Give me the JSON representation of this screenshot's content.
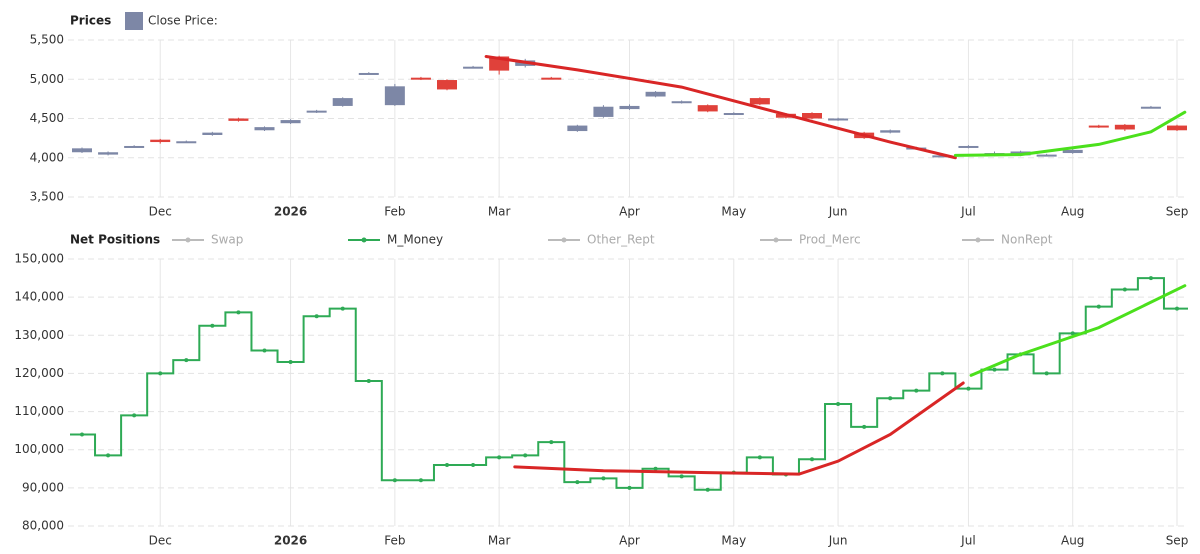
{
  "chart_data": [
    {
      "type": "candlestick",
      "title": "Prices",
      "legend": "Close Price:",
      "categories": [
        null,
        null,
        null,
        "Dec",
        null,
        null,
        null,
        null,
        "2026",
        null,
        null,
        null,
        "Feb",
        null,
        null,
        null,
        "Mar",
        null,
        null,
        null,
        null,
        "Apr",
        null,
        null,
        null,
        "May",
        null,
        null,
        null,
        "Jun",
        null,
        null,
        null,
        null,
        "Jul",
        null,
        null,
        null,
        "Aug",
        null,
        null,
        null,
        "Sep"
      ],
      "open": [
        4070,
        4040,
        4140,
        4230,
        4200,
        4290,
        4500,
        4350,
        4440,
        4580,
        4660,
        5070,
        4670,
        5020,
        4990,
        5150,
        5290,
        5170,
        5020,
        4340,
        4520,
        4620,
        4780,
        4700,
        4670,
        4560,
        4760,
        4560,
        4570,
        4480,
        4320,
        4320,
        4120,
        4020,
        4130,
        4030,
        4030,
        4030,
        4060,
        4410,
        4420,
        4640,
        4410
      ],
      "high": [
        4130,
        4080,
        4160,
        4240,
        4220,
        4330,
        4510,
        4400,
        4490,
        4610,
        4770,
        5090,
        4940,
        5030,
        5000,
        5170,
        5300,
        5260,
        5030,
        4420,
        4670,
        4680,
        4850,
        4730,
        4680,
        4580,
        4770,
        4570,
        4580,
        4510,
        4330,
        4360,
        4140,
        4040,
        4160,
        4080,
        4090,
        4050,
        4120,
        4420,
        4430,
        4660,
        4420
      ],
      "low": [
        4060,
        4030,
        4140,
        4180,
        4190,
        4280,
        4460,
        4340,
        4430,
        4570,
        4650,
        5060,
        4660,
        4990,
        4860,
        5140,
        5060,
        5150,
        5000,
        4330,
        4510,
        4610,
        4770,
        4690,
        4580,
        4550,
        4670,
        4500,
        4490,
        4470,
        4240,
        4310,
        4110,
        4010,
        4120,
        4020,
        4020,
        4020,
        4050,
        4380,
        4340,
        4630,
        4340
      ],
      "close": [
        4120,
        4070,
        4150,
        4200,
        4210,
        4320,
        4470,
        4390,
        4480,
        4600,
        4760,
        5080,
        4910,
        5000,
        4870,
        5160,
        5110,
        5240,
        5010,
        4410,
        4650,
        4660,
        4840,
        4720,
        4590,
        4570,
        4680,
        4510,
        4500,
        4500,
        4250,
        4350,
        4130,
        4030,
        4150,
        4060,
        4080,
        4040,
        4100,
        4390,
        4360,
        4650,
        4350
      ],
      "up_color": "#7d87a6",
      "down_color": "#e0413a",
      "ylim": [
        3500,
        5500
      ],
      "yticks": [
        {
          "value": 3500,
          "label": "3,500"
        },
        {
          "value": 4000,
          "label": "4,000"
        },
        {
          "value": 4500,
          "label": "4,500"
        },
        {
          "value": 5000,
          "label": "5,000"
        },
        {
          "value": 5500,
          "label": "5,500"
        }
      ],
      "grid": true,
      "trend_lines": [
        {
          "color": "#d92626",
          "x": [
            15.5,
            19,
            23,
            27,
            31,
            33.5
          ],
          "values": [
            5290,
            5120,
            4900,
            4550,
            4200,
            4000
          ]
        },
        {
          "color": "#4be01c",
          "x": [
            33.5,
            36,
            39,
            41,
            42.3
          ],
          "values": [
            4030,
            4040,
            4170,
            4330,
            4580
          ]
        }
      ]
    },
    {
      "type": "step",
      "title": "Net Positions",
      "categories": [
        null,
        null,
        null,
        "Dec",
        null,
        null,
        null,
        null,
        "2026",
        null,
        null,
        null,
        "Feb",
        null,
        null,
        null,
        "Mar",
        null,
        null,
        null,
        null,
        "Apr",
        null,
        null,
        null,
        "May",
        null,
        null,
        null,
        "Jun",
        null,
        null,
        null,
        null,
        "Jul",
        null,
        null,
        null,
        "Aug",
        null,
        null,
        null,
        "Sep"
      ],
      "series": [
        {
          "name": "Swap",
          "color": "#a6a6a6",
          "hidden": true
        },
        {
          "name": "M_Money",
          "color": "#2eaa55",
          "values": [
            104000,
            98500,
            109000,
            120000,
            123500,
            132500,
            136000,
            126000,
            123000,
            135000,
            137000,
            118000,
            92000,
            92000,
            96000,
            96000,
            98000,
            98500,
            102000,
            91500,
            92500,
            90000,
            95000,
            93000,
            89500,
            94000,
            98000,
            93500,
            97500,
            112000,
            106000,
            113500,
            115500,
            120000,
            116000,
            121000,
            125000,
            120000,
            130500,
            137500,
            142000,
            145000,
            137000
          ]
        },
        {
          "name": "Other_Rept",
          "color": "#a6a6a6",
          "hidden": true
        },
        {
          "name": "Prod_Merc",
          "color": "#a6a6a6",
          "hidden": true
        },
        {
          "name": "NonRept",
          "color": "#a6a6a6",
          "hidden": true
        }
      ],
      "ylim": [
        80000,
        150000
      ],
      "yticks": [
        {
          "value": 80000,
          "label": "80,000"
        },
        {
          "value": 90000,
          "label": "90,000"
        },
        {
          "value": 100000,
          "label": "100,000"
        },
        {
          "value": 110000,
          "label": "110,000"
        },
        {
          "value": 120000,
          "label": "120,000"
        },
        {
          "value": 130000,
          "label": "130,000"
        },
        {
          "value": 140000,
          "label": "140,000"
        },
        {
          "value": 150000,
          "label": "150,000"
        }
      ],
      "grid": true,
      "trend_lines": [
        {
          "color": "#d92626",
          "x": [
            16.6,
            20,
            24,
            27.5,
            29,
            31,
            33.8
          ],
          "values": [
            95500,
            94500,
            94000,
            93600,
            97000,
            104000,
            117500
          ]
        },
        {
          "color": "#4be01c",
          "x": [
            34.1,
            36,
            39,
            42.3
          ],
          "values": [
            119500,
            125000,
            132000,
            143000
          ]
        }
      ]
    }
  ]
}
